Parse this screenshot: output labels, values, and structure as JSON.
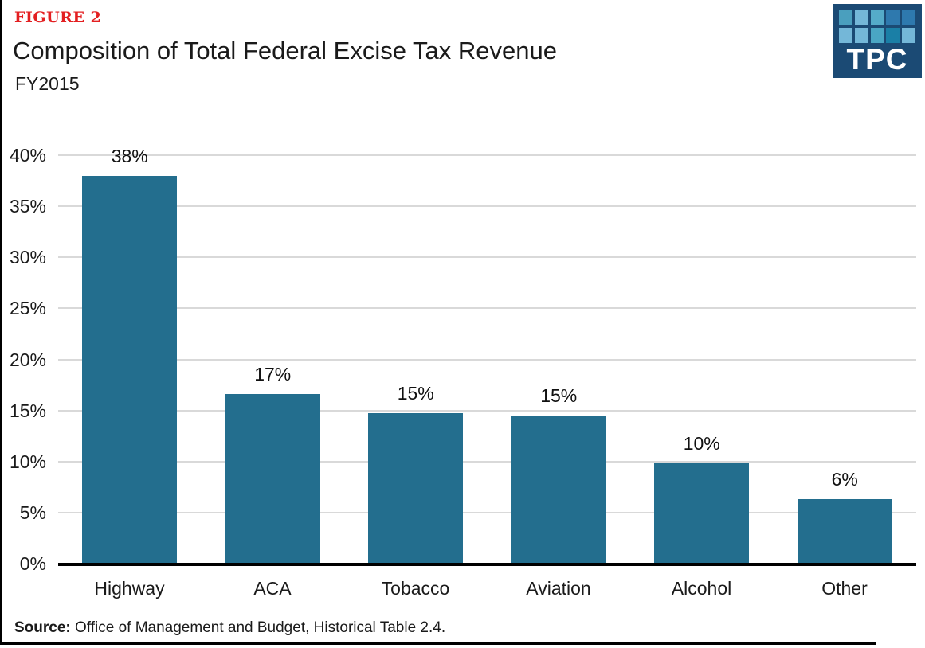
{
  "figure_label": "FIGURE 2",
  "title": "Composition of Total Federal Excise Tax Revenue",
  "subtitle": "FY2015",
  "source": {
    "label": "Source:",
    "text": " Office of Management and Budget, Historical Table 2.4."
  },
  "logo": {
    "text": "TPC",
    "bg_color": "#1b4a74",
    "square_colors": [
      "#4a9fbe",
      "#74b7d8",
      "#55abc9",
      "#2e79ae",
      "#2e79ae",
      "#74b7d8",
      "#74b7d8",
      "#4aa6c4",
      "#1a7fa6",
      "#74b7d8"
    ]
  },
  "colors": {
    "bar": "#236e8e",
    "figure_label": "#e31f21",
    "gridline": "#d9d9d9",
    "axis": "#000000",
    "text": "#1a1a1a"
  },
  "chart_data": {
    "type": "bar",
    "title": "Composition of Total Federal Excise Tax Revenue",
    "subtitle": "FY2015",
    "categories": [
      "Highway",
      "ACA",
      "Tobacco",
      "Aviation",
      "Alcohol",
      "Other"
    ],
    "values": [
      38,
      17,
      15,
      15,
      10,
      6
    ],
    "value_labels": [
      "38%",
      "17%",
      "15%",
      "15%",
      "10%",
      "6%"
    ],
    "rendered_values": [
      38.0,
      16.6,
      14.7,
      14.5,
      9.8,
      6.3
    ],
    "xlabel": "",
    "ylabel": "",
    "ylim": [
      0,
      40
    ],
    "ytick_values": [
      40,
      35,
      30,
      25,
      20,
      15,
      10,
      5,
      0
    ],
    "ytick_labels": [
      "40%",
      "35%",
      "30%",
      "25%",
      "20%",
      "15%",
      "10%",
      "5%",
      "0%"
    ],
    "grid": true,
    "legend": false,
    "bar_color": "#236e8e"
  }
}
